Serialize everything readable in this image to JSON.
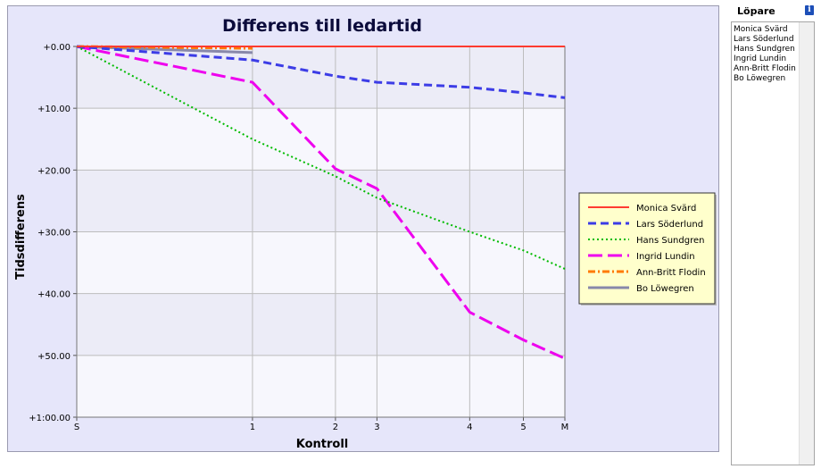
{
  "runner_panel": {
    "heading": "Löpare",
    "info_icon": "info-icon",
    "runners": [
      "Monica Svärd",
      "Lars Söderlund",
      "Hans Sundgren",
      "Ingrid Lundin",
      "Ann-Britt Flodin",
      "Bo Löwegren"
    ]
  },
  "chart_data": {
    "type": "line",
    "title": "Differens till ledartid",
    "xlabel": "Kontroll",
    "ylabel": "Tidsdifferens",
    "x_ticks": [
      {
        "label": "S",
        "pos": 0
      },
      {
        "label": "1",
        "pos": 0.36
      },
      {
        "label": "2",
        "pos": 0.53
      },
      {
        "label": "3",
        "pos": 0.615
      },
      {
        "label": "4",
        "pos": 0.805
      },
      {
        "label": "5",
        "pos": 0.915
      },
      {
        "label": "M",
        "pos": 1
      }
    ],
    "y_ticks": [
      "+0.00",
      "+10.00",
      "+20.00",
      "+30.00",
      "+40.00",
      "+50.00",
      "+1:00.00"
    ],
    "ylim": [
      0,
      60
    ],
    "y_inverted": true,
    "grid": true,
    "legend_position": "right",
    "series": [
      {
        "name": "Monica Svärd",
        "color": "#ff3b30",
        "dash": "solid",
        "width": 2,
        "x": [
          0,
          0.36,
          0.53,
          0.615,
          0.805,
          0.915,
          1
        ],
        "y": [
          0,
          0,
          0,
          0,
          0,
          0,
          0
        ]
      },
      {
        "name": "Lars Söderlund",
        "color": "#3c3ce6",
        "dash": "dashed",
        "width": 3,
        "x": [
          0,
          0.36,
          0.53,
          0.615,
          0.805,
          0.915,
          1
        ],
        "y": [
          0,
          2.2,
          4.8,
          5.8,
          6.6,
          7.5,
          8.3
        ]
      },
      {
        "name": "Hans Sundgren",
        "color": "#00bb00",
        "dash": "dotted",
        "width": 2,
        "x": [
          0,
          0.36,
          0.53,
          0.615,
          0.805,
          0.915,
          1
        ],
        "y": [
          0,
          15,
          21,
          24.5,
          30,
          33,
          36
        ]
      },
      {
        "name": "Ingrid Lundin",
        "color": "#ee00ee",
        "dash": "longdash",
        "width": 3,
        "x": [
          0,
          0.36,
          0.53,
          0.615,
          0.805,
          0.915,
          1
        ],
        "y": [
          0,
          5.8,
          19.8,
          23,
          43,
          47.5,
          50.5
        ]
      },
      {
        "name": "Ann-Britt Flodin",
        "color": "#ff7a00",
        "dash": "dashdot",
        "width": 3,
        "x": [
          0,
          0.36
        ],
        "y": [
          0,
          0.3
        ]
      },
      {
        "name": "Bo Löwegren",
        "color": "#8888aa",
        "dash": "solid",
        "width": 3,
        "x": [
          0,
          0.36
        ],
        "y": [
          0,
          1.0
        ]
      }
    ]
  }
}
